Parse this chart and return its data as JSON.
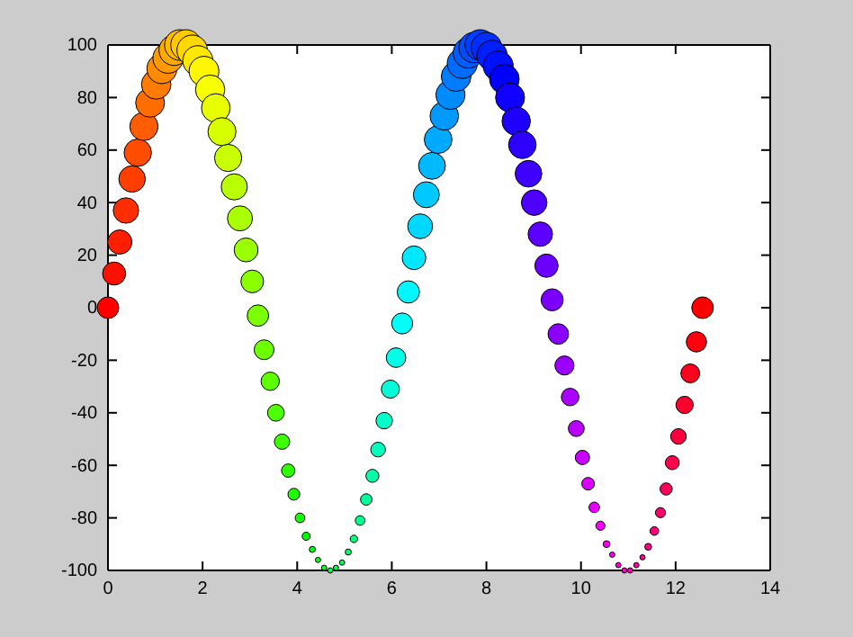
{
  "chart_data": {
    "type": "bubble",
    "x": [
      0,
      0.13,
      0.25,
      0.38,
      0.51,
      0.63,
      0.76,
      0.89,
      1.02,
      1.14,
      1.27,
      1.4,
      1.52,
      1.65,
      1.78,
      1.9,
      2.03,
      2.16,
      2.28,
      2.41,
      2.54,
      2.67,
      2.79,
      2.92,
      3.05,
      3.17,
      3.3,
      3.43,
      3.55,
      3.68,
      3.81,
      3.93,
      4.06,
      4.19,
      4.32,
      4.44,
      4.57,
      4.7,
      4.82,
      4.95,
      5.08,
      5.2,
      5.33,
      5.46,
      5.59,
      5.71,
      5.84,
      5.97,
      6.09,
      6.22,
      6.35,
      6.47,
      6.6,
      6.73,
      6.85,
      6.98,
      7.11,
      7.24,
      7.36,
      7.49,
      7.62,
      7.74,
      7.87,
      8.0,
      8.12,
      8.25,
      8.38,
      8.5,
      8.63,
      8.76,
      8.89,
      9.01,
      9.14,
      9.27,
      9.39,
      9.52,
      9.65,
      9.77,
      9.9,
      10.03,
      10.15,
      10.28,
      10.41,
      10.54,
      10.66,
      10.79,
      10.92,
      11.04,
      11.17,
      11.3,
      11.42,
      11.55,
      11.68,
      11.8,
      11.93,
      12.06,
      12.19,
      12.31,
      12.44,
      12.57
    ],
    "values": [
      0,
      13,
      25,
      37,
      49,
      59,
      69,
      78,
      85,
      91,
      95,
      98,
      100,
      100,
      98,
      94,
      90,
      83,
      76,
      67,
      57,
      46,
      34,
      22,
      10,
      -3,
      -16,
      -28,
      -40,
      -51,
      -62,
      -71,
      -80,
      -87,
      -92,
      -96,
      -99,
      -100,
      -99,
      -97,
      -93,
      -88,
      -81,
      -73,
      -64,
      -54,
      -43,
      -31,
      -19,
      -6,
      6,
      19,
      31,
      43,
      54,
      64,
      73,
      81,
      88,
      93,
      97,
      99,
      100,
      99,
      96,
      92,
      87,
      80,
      71,
      62,
      51,
      40,
      28,
      16,
      3,
      -10,
      -22,
      -34,
      -46,
      -57,
      -67,
      -76,
      -83,
      -90,
      -94,
      -98,
      -100,
      -100,
      -98,
      -95,
      -91,
      -85,
      -78,
      -69,
      -59,
      -49,
      -37,
      -25,
      -13,
      0
    ],
    "sizes": [
      0.5,
      0.57,
      0.63,
      0.69,
      0.75,
      0.8,
      0.85,
      0.89,
      0.93,
      0.96,
      0.98,
      0.99,
      1,
      1,
      0.99,
      0.97,
      0.95,
      0.92,
      0.88,
      0.84,
      0.79,
      0.73,
      0.67,
      0.61,
      0.55,
      0.49,
      0.42,
      0.36,
      0.3,
      0.25,
      0.19,
      0.15,
      0.1,
      0.07,
      0.04,
      0.03,
      0.03,
      0.03,
      0.03,
      0.03,
      0.04,
      0.06,
      0.1,
      0.14,
      0.18,
      0.23,
      0.29,
      0.35,
      0.41,
      0.47,
      0.53,
      0.6,
      0.66,
      0.72,
      0.77,
      0.82,
      0.87,
      0.91,
      0.94,
      0.97,
      0.99,
      1,
      1,
      1,
      0.98,
      0.96,
      0.94,
      0.9,
      0.86,
      0.81,
      0.76,
      0.7,
      0.64,
      0.58,
      0.52,
      0.45,
      0.39,
      0.33,
      0.27,
      0.22,
      0.17,
      0.12,
      0.09,
      0.05,
      0.03,
      0.03,
      0.03,
      0.03,
      0.03,
      0.03,
      0.05,
      0.08,
      0.11,
      0.16,
      0.21,
      0.26,
      0.32,
      0.38,
      0.44,
      0.5
    ],
    "colors": [
      "#ff0000",
      "#ff0f00",
      "#ff1f00",
      "#ff2e00",
      "#ff3e00",
      "#ff4d00",
      "#ff5d00",
      "#ff6c00",
      "#ff7c00",
      "#ff8b00",
      "#ff9b00",
      "#ffaa00",
      "#ffba00",
      "#ffc900",
      "#ffd800",
      "#ffe800",
      "#fff700",
      "#f7ff00",
      "#e8ff00",
      "#d8ff00",
      "#c9ff00",
      "#b9ff00",
      "#aaff00",
      "#9aff00",
      "#8bff00",
      "#7cff00",
      "#6cff00",
      "#5dff00",
      "#4dff00",
      "#3eff00",
      "#2eff00",
      "#1fff00",
      "#0fff00",
      "#00ff00",
      "#00ff0f",
      "#00ff1f",
      "#00ff2e",
      "#00ff3e",
      "#00ff4d",
      "#00ff5d",
      "#00ff6c",
      "#00ff7c",
      "#00ff8b",
      "#00ff9b",
      "#00ffaa",
      "#00ffba",
      "#00ffc9",
      "#00ffd8",
      "#00ffe8",
      "#00fff7",
      "#00f7ff",
      "#00e8ff",
      "#00d8ff",
      "#00c9ff",
      "#00b9ff",
      "#00aaff",
      "#009aff",
      "#008bff",
      "#007cff",
      "#006cff",
      "#005dff",
      "#004dff",
      "#003eff",
      "#002eff",
      "#001fff",
      "#000fff",
      "#0000ff",
      "#0f00ff",
      "#1f00ff",
      "#2e00ff",
      "#3e00ff",
      "#4d00ff",
      "#5d00ff",
      "#6c00ff",
      "#7c00ff",
      "#8b00ff",
      "#9b00ff",
      "#aa00ff",
      "#ba00ff",
      "#c900ff",
      "#d800ff",
      "#e800ff",
      "#f700ff",
      "#ff00f7",
      "#ff00e8",
      "#ff00d8",
      "#ff00c9",
      "#ff00b9",
      "#ff00aa",
      "#ff009a",
      "#ff008b",
      "#ff007c",
      "#ff006c",
      "#ff005d",
      "#ff004d",
      "#ff003e",
      "#ff002e",
      "#ff001f",
      "#ff000f",
      "#ff0000"
    ],
    "xlim": [
      0,
      14
    ],
    "xticks": [
      0,
      2,
      4,
      6,
      8,
      10,
      12,
      14
    ],
    "ylim": [
      -100,
      100
    ],
    "yticks": [
      -100,
      -80,
      -60,
      -40,
      -20,
      0,
      20,
      40,
      60,
      80,
      100
    ],
    "grid": false,
    "marker": "circle"
  }
}
